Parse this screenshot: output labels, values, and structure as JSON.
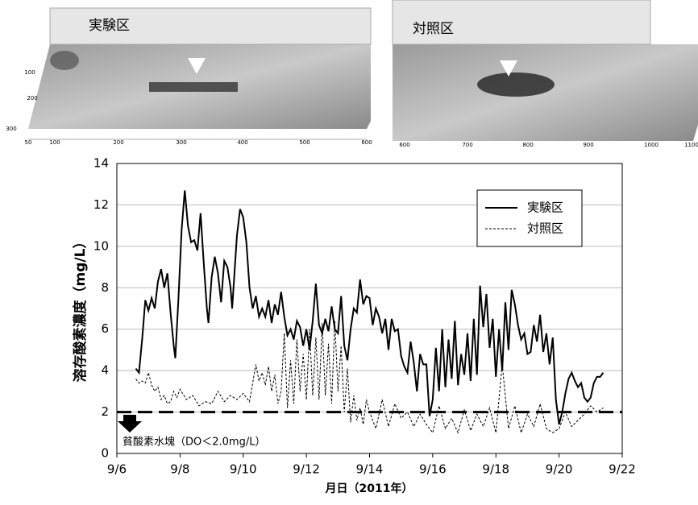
{
  "panels": [
    {
      "label": "実験区",
      "bottom_ticks": [
        50,
        100,
        200,
        300,
        400,
        500,
        600
      ],
      "side_ticks": [
        100,
        200,
        300
      ]
    },
    {
      "label": "対照区",
      "bottom_ticks": [
        600,
        700,
        800,
        900,
        1000,
        1100
      ]
    }
  ],
  "chart_data": {
    "type": "line",
    "y_label": "溶存酸素濃度（mg/L）",
    "x_label": "月日（2011年）",
    "xlim": [
      6,
      22
    ],
    "xticks": [
      {
        "value": 6,
        "label": "9/6"
      },
      {
        "value": 8,
        "label": "9/8"
      },
      {
        "value": 10,
        "label": "9/10"
      },
      {
        "value": 12,
        "label": "9/12"
      },
      {
        "value": 14,
        "label": "9/14"
      },
      {
        "value": 16,
        "label": "9/16"
      },
      {
        "value": 18,
        "label": "9/18"
      },
      {
        "value": 20,
        "label": "9/20"
      },
      {
        "value": 22,
        "label": "9/22"
      }
    ],
    "ylim": [
      0,
      14
    ],
    "yticks": [
      0,
      2,
      4,
      6,
      8,
      10,
      12,
      14
    ],
    "grid": true,
    "legend": "upper right",
    "threshold": 2,
    "annotation": "貧酸素水塊（DO＜2.0mg/L）",
    "series": [
      {
        "name": "実験区",
        "color": "#000000",
        "style": "solid",
        "x": [
          6.6,
          6.7,
          6.8,
          6.9,
          7.0,
          7.1,
          7.2,
          7.3,
          7.4,
          7.5,
          7.6,
          7.7,
          7.8,
          7.85,
          7.95,
          8.05,
          8.15,
          8.25,
          8.35,
          8.45,
          8.55,
          8.65,
          8.75,
          8.85,
          8.9,
          9.0,
          9.1,
          9.2,
          9.3,
          9.4,
          9.5,
          9.6,
          9.65,
          9.8,
          9.9,
          10.0,
          10.1,
          10.2,
          10.3,
          10.4,
          10.5,
          10.6,
          10.7,
          10.8,
          10.9,
          11.0,
          11.1,
          11.2,
          11.3,
          11.4,
          11.5,
          11.6,
          11.7,
          11.8,
          11.9,
          12.0,
          12.1,
          12.2,
          12.3,
          12.4,
          12.5,
          12.6,
          12.7,
          12.8,
          12.9,
          13.0,
          13.1,
          13.2,
          13.3,
          13.4,
          13.5,
          13.6,
          13.7,
          13.8,
          13.9,
          14.0,
          14.1,
          14.2,
          14.3,
          14.4,
          14.5,
          14.6,
          14.7,
          14.8,
          14.9,
          15.0,
          15.1,
          15.2,
          15.3,
          15.4,
          15.5,
          15.6,
          15.7,
          15.8,
          15.9,
          16.0,
          16.1,
          16.2,
          16.3,
          16.4,
          16.5,
          16.6,
          16.7,
          16.8,
          16.9,
          17.0,
          17.1,
          17.2,
          17.3,
          17.4,
          17.5,
          17.6,
          17.7,
          17.8,
          17.9,
          18.0,
          18.1,
          18.2,
          18.3,
          18.4,
          18.5,
          18.6,
          18.7,
          18.8,
          18.9,
          19.0,
          19.1,
          19.2,
          19.3,
          19.4,
          19.5,
          19.6,
          19.7,
          19.8,
          19.9,
          20.0,
          20.1,
          20.2,
          20.3,
          20.4,
          20.5,
          20.6,
          20.7,
          20.8,
          20.9,
          21.0,
          21.1,
          21.2,
          21.3,
          21.4
        ],
        "values": [
          4.1,
          3.9,
          5.5,
          7.4,
          6.9,
          7.5,
          7.0,
          8.3,
          8.9,
          8.0,
          8.7,
          6.8,
          5.2,
          4.6,
          7.5,
          10.8,
          12.7,
          11.0,
          10.2,
          10.3,
          9.8,
          11.6,
          9.2,
          7.0,
          6.3,
          8.5,
          9.5,
          8.7,
          7.3,
          9.3,
          9.0,
          8.0,
          7.0,
          10.5,
          11.8,
          11.4,
          10.2,
          8.0,
          7.0,
          7.6,
          6.6,
          7.0,
          6.6,
          7.4,
          6.3,
          7.2,
          6.7,
          7.8,
          6.6,
          5.7,
          6.0,
          5.5,
          6.4,
          6.1,
          5.2,
          6.0,
          5.0,
          6.4,
          8.2,
          6.2,
          5.8,
          6.5,
          5.9,
          7.1,
          6.0,
          5.8,
          7.6,
          5.2,
          4.5,
          6.0,
          7.0,
          6.8,
          8.4,
          7.2,
          7.6,
          7.5,
          6.2,
          7.0,
          6.6,
          5.8,
          6.5,
          5.0,
          6.5,
          5.9,
          6.0,
          4.7,
          4.2,
          3.9,
          5.4,
          4.4,
          3.0,
          4.8,
          4.3,
          4.3,
          1.8,
          2.6,
          5.1,
          3.0,
          6.0,
          3.2,
          5.5,
          3.6,
          6.4,
          3.3,
          4.8,
          3.8,
          5.8,
          3.5,
          6.5,
          3.8,
          8.1,
          6.1,
          7.7,
          5.1,
          6.5,
          3.7,
          6.0,
          4.0,
          7.3,
          5.0,
          7.9,
          7.2,
          6.2,
          5.5,
          5.8,
          4.8,
          4.9,
          6.2,
          5.4,
          6.7,
          4.9,
          5.8,
          4.3,
          5.6,
          2.6,
          1.4,
          2.0,
          2.9,
          3.6,
          3.9,
          3.5,
          3.2,
          3.4,
          2.7,
          2.5,
          2.7,
          3.4,
          3.7,
          3.7,
          3.9
        ]
      },
      {
        "name": "対照区",
        "color": "#000000",
        "style": "dashed",
        "x": [
          6.6,
          6.7,
          6.8,
          6.9,
          7.0,
          7.1,
          7.2,
          7.3,
          7.4,
          7.5,
          7.6,
          7.7,
          7.8,
          7.9,
          8.0,
          8.2,
          8.4,
          8.6,
          8.8,
          9.0,
          9.2,
          9.4,
          9.6,
          9.8,
          10.0,
          10.2,
          10.4,
          10.5,
          10.6,
          10.7,
          10.8,
          10.9,
          11.0,
          11.1,
          11.2,
          11.3,
          11.4,
          11.5,
          11.6,
          11.7,
          11.8,
          11.9,
          12.0,
          12.1,
          12.2,
          12.3,
          12.4,
          12.5,
          12.6,
          12.7,
          12.8,
          12.9,
          13.0,
          13.1,
          13.2,
          13.3,
          13.4,
          13.5,
          13.6,
          13.7,
          13.8,
          13.9,
          14.0,
          14.2,
          14.4,
          14.6,
          14.8,
          15.0,
          15.2,
          15.4,
          15.6,
          15.8,
          16.0,
          16.2,
          16.4,
          16.6,
          16.8,
          17.0,
          17.2,
          17.4,
          17.6,
          17.8,
          18.0,
          18.2,
          18.4,
          18.6,
          18.8,
          19.0,
          19.2,
          19.4,
          19.6,
          19.8,
          20.0,
          20.2,
          20.4,
          20.6,
          20.8,
          21.0,
          21.2,
          21.4
        ],
        "values": [
          3.6,
          3.4,
          3.5,
          3.4,
          3.9,
          3.3,
          3.0,
          3.2,
          2.6,
          2.8,
          2.4,
          2.5,
          3.0,
          2.7,
          3.1,
          2.6,
          2.8,
          2.3,
          2.5,
          2.4,
          3.0,
          2.5,
          2.8,
          2.6,
          2.9,
          2.5,
          4.3,
          3.5,
          3.9,
          3.3,
          4.2,
          3.0,
          3.8,
          2.4,
          3.0,
          5.8,
          2.2,
          4.5,
          2.4,
          5.5,
          3.0,
          4.8,
          2.6,
          6.0,
          2.8,
          5.6,
          2.6,
          6.3,
          2.8,
          5.3,
          2.4,
          6.4,
          3.0,
          5.2,
          2.0,
          4.1,
          1.5,
          2.8,
          1.6,
          2.2,
          1.4,
          2.6,
          2.0,
          1.2,
          2.6,
          1.3,
          2.4,
          1.7,
          2.0,
          1.3,
          1.9,
          1.4,
          1.0,
          2.3,
          1.2,
          1.7,
          1.0,
          2.1,
          1.1,
          1.9,
          1.3,
          2.2,
          1.0,
          4.3,
          1.2,
          2.3,
          1.0,
          1.9,
          1.3,
          2.4,
          1.2,
          1.0,
          1.2,
          2.0,
          1.3,
          1.6,
          1.9,
          2.3,
          2.0,
          2.2
        ]
      }
    ]
  }
}
